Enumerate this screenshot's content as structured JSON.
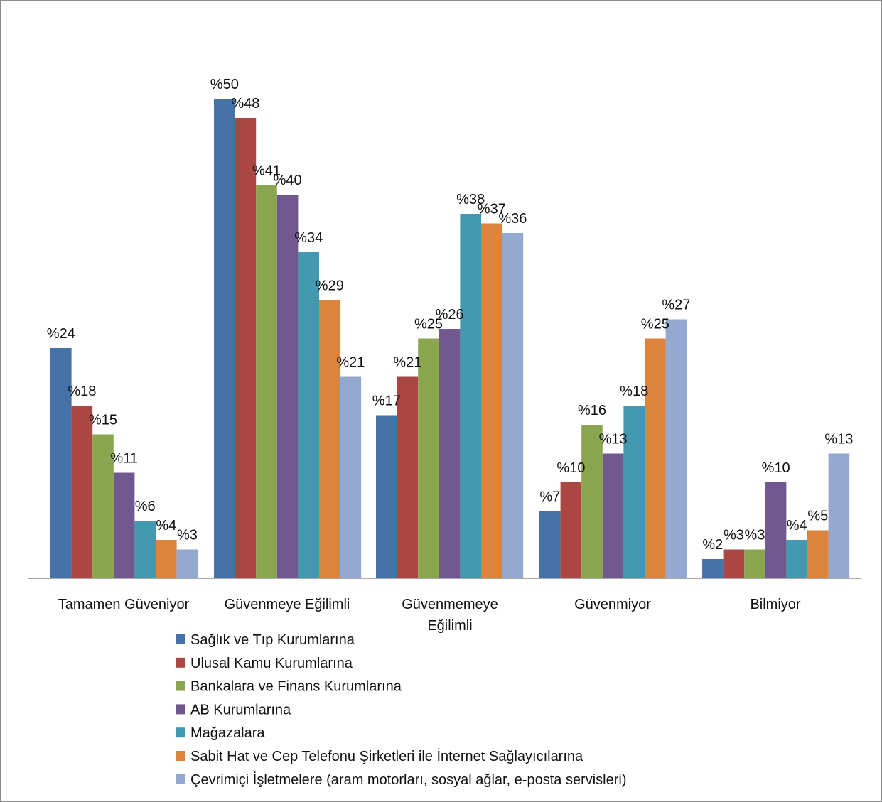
{
  "chart_data": {
    "type": "bar",
    "title": "",
    "xlabel": "",
    "ylabel": "",
    "ylim": [
      0,
      50
    ],
    "grid": false,
    "value_prefix": "%",
    "legend_position": "bottom",
    "categories": [
      "Tamamen Güveniyor",
      "Güvenmeye Eğilimli",
      "Güvenmemeye Eğilimli",
      "Güvenmiyor",
      "Bilmiyor"
    ],
    "category_label_lines": [
      [
        "Tamamen Güveniyor"
      ],
      [
        "Güvenmeye Eğilimli"
      ],
      [
        "Güvenmemeye",
        "Eğilimli"
      ],
      [
        "Güvenmiyor"
      ],
      [
        "Bilmiyor"
      ]
    ],
    "series": [
      {
        "name": "Sağlık ve Tıp Kurumlarına",
        "color": "#4572A7",
        "values": [
          24,
          50,
          17,
          7,
          2
        ]
      },
      {
        "name": "Ulusal Kamu Kurumlarına",
        "color": "#AA4643",
        "values": [
          18,
          48,
          21,
          10,
          3
        ]
      },
      {
        "name": "Bankalara ve Finans Kurumlarına",
        "color": "#89A54E",
        "values": [
          15,
          41,
          25,
          16,
          3
        ]
      },
      {
        "name": "AB Kurumlarına",
        "color": "#71588F",
        "values": [
          11,
          40,
          26,
          13,
          10
        ]
      },
      {
        "name": "Mağazalara",
        "color": "#4198AF",
        "values": [
          6,
          34,
          38,
          18,
          4
        ]
      },
      {
        "name": "Sabit Hat ve Cep Telefonu Şirketleri ile İnternet Sağlayıcılarına",
        "color": "#DB843D",
        "values": [
          4,
          29,
          37,
          25,
          5
        ]
      },
      {
        "name": "Çevrimiçi İşletmelere (aram motorları, sosyal ağlar, e-posta servisleri)",
        "color": "#93A9CF",
        "values": [
          3,
          21,
          36,
          27,
          13
        ]
      }
    ]
  }
}
